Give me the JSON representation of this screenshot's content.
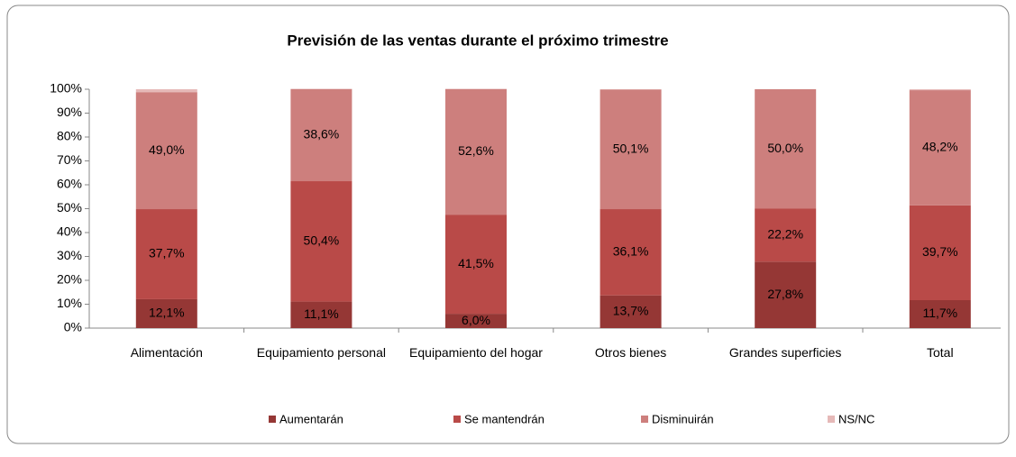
{
  "chart_data": {
    "type": "stacked_bar",
    "title": "Previsión de las ventas durante el próximo trimestre",
    "categories": [
      "Alimentación",
      "Equipamiento personal",
      "Equipamiento del hogar",
      "Otros bienes",
      "Grandes superficies",
      "Total"
    ],
    "series": [
      {
        "name": "Aumentarán",
        "color": "#953735",
        "values": [
          12.1,
          11.1,
          6.0,
          13.7,
          27.8,
          11.7
        ],
        "value_labels": [
          "12,1%",
          "11,1%",
          "6,0%",
          "13,7%",
          "27,8%",
          "11,7%"
        ]
      },
      {
        "name": "Se mantendrán",
        "color": "#b94a48",
        "values": [
          37.7,
          50.4,
          41.5,
          36.1,
          22.2,
          39.7
        ],
        "value_labels": [
          "37,7%",
          "50,4%",
          "41,5%",
          "36,1%",
          "22,2%",
          "39,7%"
        ]
      },
      {
        "name": "Disminuirán",
        "color": "#cd7f7d",
        "values": [
          49.0,
          38.6,
          52.6,
          50.1,
          50.0,
          48.2
        ],
        "value_labels": [
          "49,0%",
          "38,6%",
          "52,6%",
          "50,1%",
          "50,0%",
          "48,2%"
        ]
      },
      {
        "name": "NS/NC",
        "color": "#e6b9b8",
        "values": [
          1.2,
          0,
          0,
          0.1,
          0,
          0.4
        ]
      }
    ],
    "ylim": [
      0,
      100
    ],
    "yticks": [
      {
        "value": 0,
        "label": "0%"
      },
      {
        "value": 10,
        "label": "10%"
      },
      {
        "value": 20,
        "label": "20%"
      },
      {
        "value": 30,
        "label": "30%"
      },
      {
        "value": 40,
        "label": "40%"
      },
      {
        "value": 50,
        "label": "50%"
      },
      {
        "value": 60,
        "label": "60%"
      },
      {
        "value": 70,
        "label": "70%"
      },
      {
        "value": 80,
        "label": "80%"
      },
      {
        "value": 90,
        "label": "90%"
      },
      {
        "value": 100,
        "label": "100%"
      }
    ],
    "grid": false,
    "legend": "bottom"
  }
}
